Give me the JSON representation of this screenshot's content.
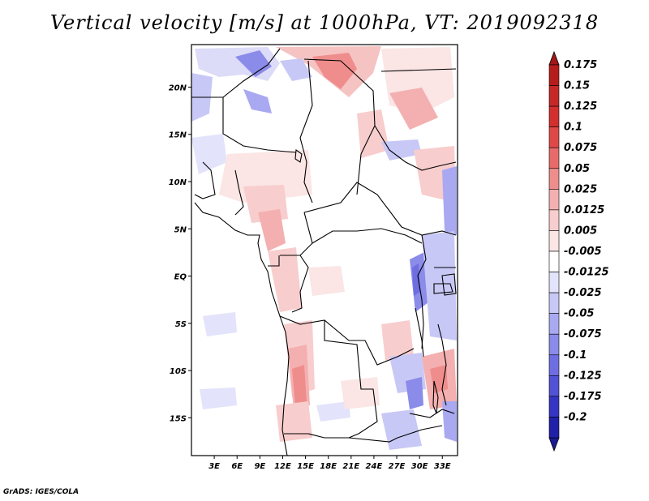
{
  "title": "Vertical velocity [m/s] at 1000hPa, VT: 2019092318",
  "credit": "GrADS: IGES/COLA",
  "map": {
    "lon_range": [
      0,
      35
    ],
    "lat_range": [
      -19,
      24.5
    ],
    "lat_ticks": [
      {
        "value": 20,
        "label": "20N"
      },
      {
        "value": 15,
        "label": "15N"
      },
      {
        "value": 10,
        "label": "10N"
      },
      {
        "value": 5,
        "label": "5N"
      },
      {
        "value": 0,
        "label": "EQ"
      },
      {
        "value": -5,
        "label": "5S"
      },
      {
        "value": -10,
        "label": "10S"
      },
      {
        "value": -15,
        "label": "15S"
      }
    ],
    "lon_ticks": [
      {
        "value": 3,
        "label": "3E"
      },
      {
        "value": 6,
        "label": "6E"
      },
      {
        "value": 9,
        "label": "9E"
      },
      {
        "value": 12,
        "label": "12E"
      },
      {
        "value": 15,
        "label": "15E"
      },
      {
        "value": 18,
        "label": "18E"
      },
      {
        "value": 21,
        "label": "21E"
      },
      {
        "value": 24,
        "label": "24E"
      },
      {
        "value": 27,
        "label": "27E"
      },
      {
        "value": 30,
        "label": "30E"
      },
      {
        "value": 33,
        "label": "33E"
      }
    ]
  },
  "colorbar": {
    "levels": [
      {
        "label": "0.175",
        "color": "#b71c1c"
      },
      {
        "label": "0.15",
        "color": "#c62828"
      },
      {
        "label": "0.125",
        "color": "#d32f2f"
      },
      {
        "label": "0.1",
        "color": "#e04848"
      },
      {
        "label": "0.075",
        "color": "#e86a6a"
      },
      {
        "label": "0.05",
        "color": "#ef8d8d"
      },
      {
        "label": "0.025",
        "color": "#f4b0b0"
      },
      {
        "label": "0.0125",
        "color": "#f8cdcd"
      },
      {
        "label": "0.005",
        "color": "#fbe5e5"
      },
      {
        "label": "-0.005",
        "color": "#ffffff"
      },
      {
        "label": "-0.0125",
        "color": "#e3e3fb"
      },
      {
        "label": "-0.025",
        "color": "#c8c8f6"
      },
      {
        "label": "-0.05",
        "color": "#a9a9f1"
      },
      {
        "label": "-0.075",
        "color": "#8b8bea"
      },
      {
        "label": "-0.1",
        "color": "#6e6ee2"
      },
      {
        "label": "-0.125",
        "color": "#5252d6"
      },
      {
        "label": "-0.175",
        "color": "#3535c4"
      },
      {
        "label": "-0.2",
        "color": "#2020a8"
      }
    ],
    "top_color": "#a01818",
    "bottom_color": "#1a1a96"
  }
}
